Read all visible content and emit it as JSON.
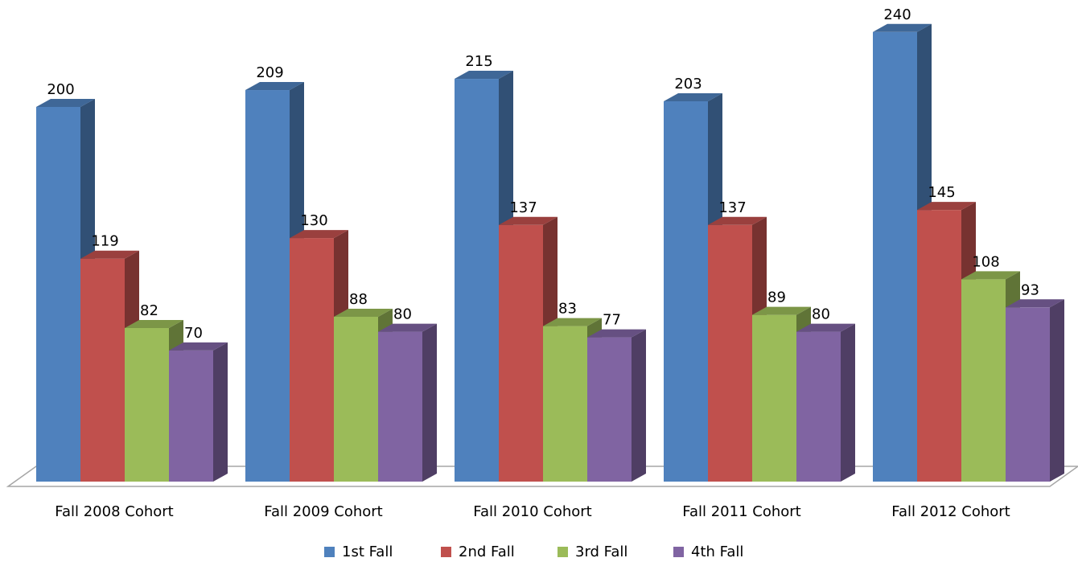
{
  "chart_data": {
    "type": "bar3d",
    "categories": [
      "Fall 2008 Cohort",
      "Fall 2009 Cohort",
      "Fall 2010 Cohort",
      "Fall 2011 Cohort",
      "Fall 2012 Cohort"
    ],
    "series": [
      {
        "name": "1st Fall",
        "color": "#4f81bd",
        "values": [
          200,
          209,
          215,
          203,
          240
        ]
      },
      {
        "name": "2nd Fall",
        "color": "#c0504d",
        "values": [
          119,
          130,
          137,
          137,
          145
        ]
      },
      {
        "name": "3rd Fall",
        "color": "#9bbb59",
        "values": [
          82,
          88,
          83,
          89,
          108
        ]
      },
      {
        "name": "4th Fall",
        "color": "#8064a2",
        "values": [
          70,
          80,
          77,
          80,
          93
        ]
      }
    ],
    "ylim": [
      0,
      250
    ],
    "legend": "bottom"
  }
}
